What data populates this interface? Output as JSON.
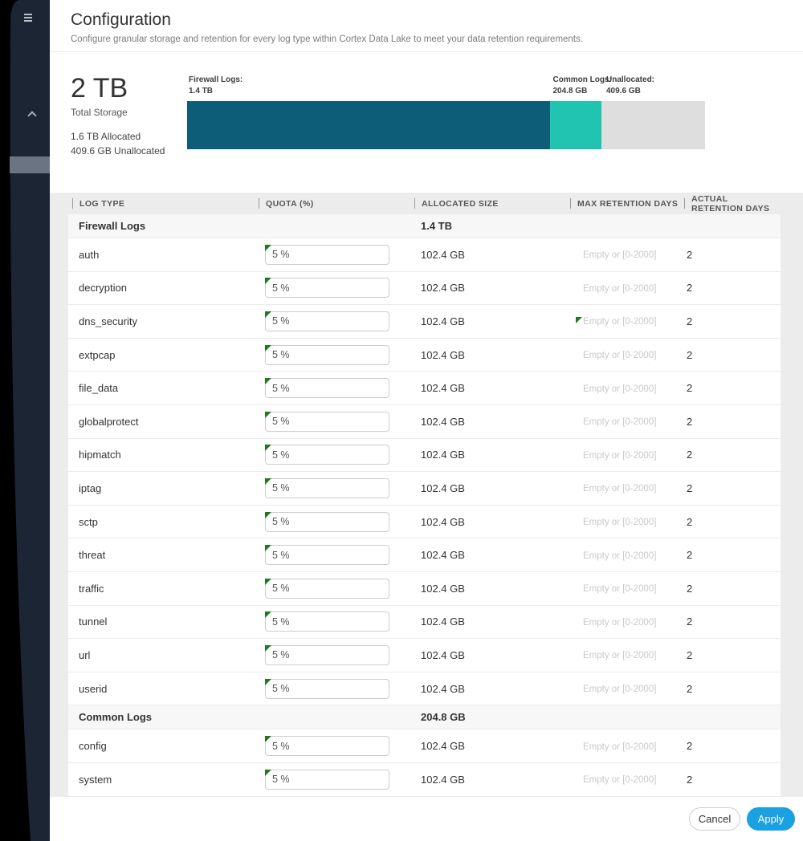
{
  "header": {
    "title": "Configuration",
    "subtitle": "Configure granular storage and retention for every log type within Cortex Data Lake to meet your data retention requirements."
  },
  "storage": {
    "total": "2 TB",
    "total_label": "Total Storage",
    "allocated_line": "1.6 TB Allocated",
    "unallocated_line": "409.6 GB Unallocated",
    "segments": [
      {
        "name": "Firewall Logs:",
        "value": "1.4 TB",
        "pct": 70,
        "color": "#0d5c78"
      },
      {
        "name": "Common Logs:",
        "value": "204.8 GB",
        "pct": 10,
        "color": "#21c3b1"
      },
      {
        "name": "Unallocated:",
        "value": "409.6 GB",
        "pct": 20,
        "color": "#dedede"
      }
    ]
  },
  "table": {
    "columns": [
      "LOG TYPE",
      "QUOTA (%)",
      "ALLOCATED SIZE",
      "MAX RETENTION DAYS",
      "ACTUAL RETENTION DAYS"
    ],
    "sections": [
      {
        "name": "Firewall Logs",
        "size": "1.4 TB",
        "rows": [
          {
            "log_type": "auth",
            "quota": "5 %",
            "allocated": "102.4 GB",
            "max_placeholder": "Empty or [0-2000]",
            "actual": "2",
            "quota_modified": true,
            "max_modified": false
          },
          {
            "log_type": "decryption",
            "quota": "5 %",
            "allocated": "102.4 GB",
            "max_placeholder": "Empty or [0-2000]",
            "actual": "2",
            "quota_modified": true,
            "max_modified": false
          },
          {
            "log_type": "dns_security",
            "quota": "5 %",
            "allocated": "102.4 GB",
            "max_placeholder": "Empty or [0-2000]",
            "actual": "2",
            "quota_modified": true,
            "max_modified": true
          },
          {
            "log_type": "extpcap",
            "quota": "5 %",
            "allocated": "102.4 GB",
            "max_placeholder": "Empty or [0-2000]",
            "actual": "2",
            "quota_modified": true,
            "max_modified": false
          },
          {
            "log_type": "file_data",
            "quota": "5 %",
            "allocated": "102.4 GB",
            "max_placeholder": "Empty or [0-2000]",
            "actual": "2",
            "quota_modified": true,
            "max_modified": false
          },
          {
            "log_type": "globalprotect",
            "quota": "5 %",
            "allocated": "102.4 GB",
            "max_placeholder": "Empty or [0-2000]",
            "actual": "2",
            "quota_modified": true,
            "max_modified": false
          },
          {
            "log_type": "hipmatch",
            "quota": "5 %",
            "allocated": "102.4 GB",
            "max_placeholder": "Empty or [0-2000]",
            "actual": "2",
            "quota_modified": true,
            "max_modified": false
          },
          {
            "log_type": "iptag",
            "quota": "5 %",
            "allocated": "102.4 GB",
            "max_placeholder": "Empty or [0-2000]",
            "actual": "2",
            "quota_modified": true,
            "max_modified": false
          },
          {
            "log_type": "sctp",
            "quota": "5 %",
            "allocated": "102.4 GB",
            "max_placeholder": "Empty or [0-2000]",
            "actual": "2",
            "quota_modified": true,
            "max_modified": false
          },
          {
            "log_type": "threat",
            "quota": "5 %",
            "allocated": "102.4 GB",
            "max_placeholder": "Empty or [0-2000]",
            "actual": "2",
            "quota_modified": true,
            "max_modified": false
          },
          {
            "log_type": "traffic",
            "quota": "5 %",
            "allocated": "102.4 GB",
            "max_placeholder": "Empty or [0-2000]",
            "actual": "2",
            "quota_modified": true,
            "max_modified": false
          },
          {
            "log_type": "tunnel",
            "quota": "5 %",
            "allocated": "102.4 GB",
            "max_placeholder": "Empty or [0-2000]",
            "actual": "2",
            "quota_modified": true,
            "max_modified": false
          },
          {
            "log_type": "url",
            "quota": "5 %",
            "allocated": "102.4 GB",
            "max_placeholder": "Empty or [0-2000]",
            "actual": "2",
            "quota_modified": true,
            "max_modified": false
          },
          {
            "log_type": "userid",
            "quota": "5 %",
            "allocated": "102.4 GB",
            "max_placeholder": "Empty or [0-2000]",
            "actual": "2",
            "quota_modified": true,
            "max_modified": false
          }
        ]
      },
      {
        "name": "Common Logs",
        "size": "204.8 GB",
        "rows": [
          {
            "log_type": "config",
            "quota": "5 %",
            "allocated": "102.4 GB",
            "max_placeholder": "Empty or [0-2000]",
            "actual": "2",
            "quota_modified": true,
            "max_modified": false
          },
          {
            "log_type": "system",
            "quota": "5 %",
            "allocated": "102.4 GB",
            "max_placeholder": "Empty or [0-2000]",
            "actual": "2",
            "quota_modified": true,
            "max_modified": false
          }
        ]
      }
    ]
  },
  "footer": {
    "cancel_label": "Cancel",
    "apply_label": "Apply"
  }
}
